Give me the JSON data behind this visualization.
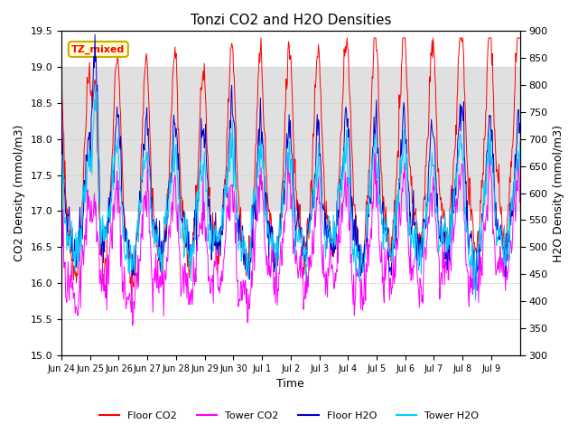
{
  "title": "Tonzi CO2 and H2O Densities",
  "xlabel": "Time",
  "ylabel_left": "CO2 Density (mmol/m3)",
  "ylabel_right": "H2O Density (mmol/m3)",
  "co2_ylim": [
    15.0,
    19.5
  ],
  "h2o_ylim": [
    300,
    900
  ],
  "co2_yticks": [
    15.0,
    15.5,
    16.0,
    16.5,
    17.0,
    17.5,
    18.0,
    18.5,
    19.0,
    19.5
  ],
  "h2o_yticks": [
    300,
    350,
    400,
    450,
    500,
    550,
    600,
    650,
    700,
    750,
    800,
    850,
    900
  ],
  "xtick_labels": [
    "Jun 24",
    "Jun 25",
    "Jun 26",
    "Jun 27",
    "Jun 28",
    "Jun 29",
    "Jun 30",
    "Jul 1",
    "Jul 2",
    "Jul 3",
    "Jul 4",
    "Jul 5",
    "Jul 6",
    "Jul 7",
    "Jul 8",
    "Jul 9"
  ],
  "annotation_text": "TZ_mixed",
  "annotation_box_facecolor": "#FFFFCC",
  "annotation_box_edgecolor": "#CCAA00",
  "floor_co2_color": "#FF0000",
  "tower_co2_color": "#FF00FF",
  "floor_h2o_color": "#0000CC",
  "tower_h2o_color": "#00CCFF",
  "shade_co2_low": 17.0,
  "shade_co2_high": 19.0,
  "shade_color": "#E0E0E0",
  "legend_labels": [
    "Floor CO2",
    "Tower CO2",
    "Floor H2O",
    "Tower H2O"
  ],
  "background_color": "#FFFFFF",
  "figsize": [
    6.4,
    4.8
  ],
  "dpi": 100
}
